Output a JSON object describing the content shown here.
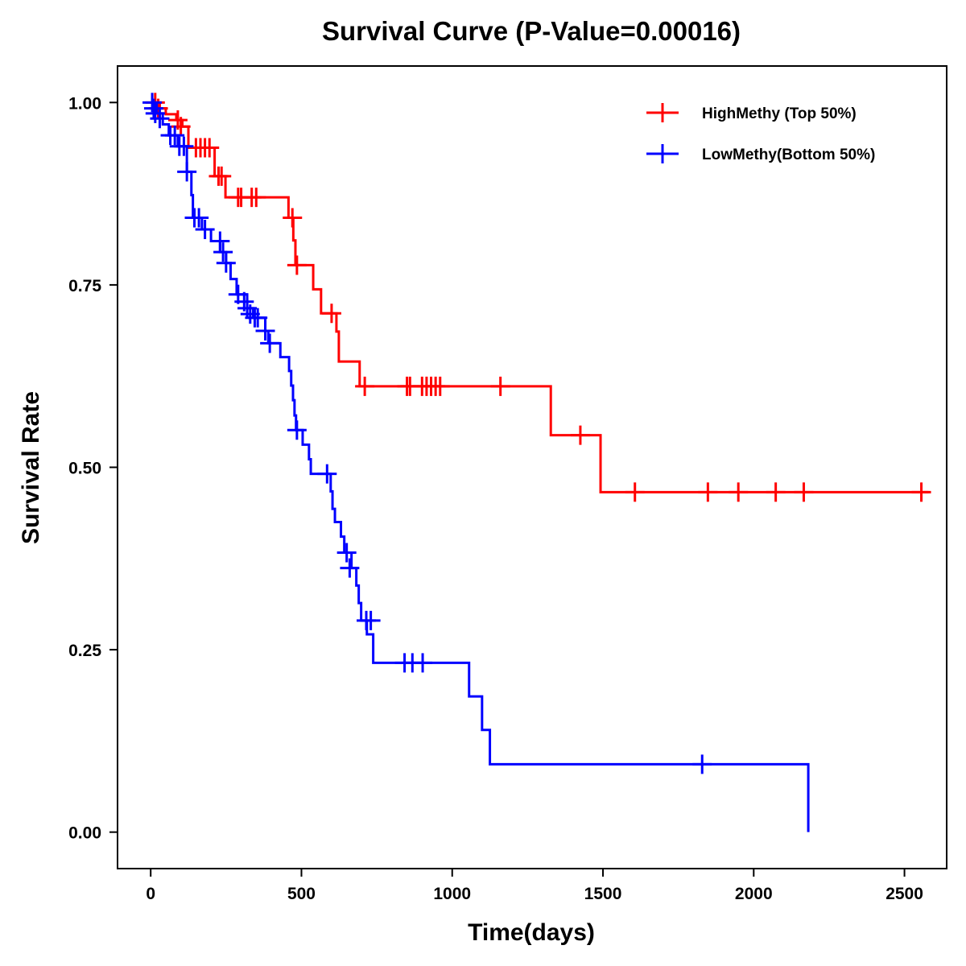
{
  "chart_data": {
    "type": "line",
    "subtype": "kaplan-meier step",
    "title": "Survival Curve (P-Value=0.00016)",
    "xlabel": "Time(days)",
    "ylabel": "Survival Rate",
    "xlim": [
      -110,
      2640
    ],
    "ylim": [
      -0.05,
      1.05
    ],
    "xticks": [
      0,
      500,
      1000,
      1500,
      2000,
      2500
    ],
    "xtick_labels": [
      "0",
      "500",
      "1000",
      "1500",
      "2000",
      "2500"
    ],
    "yticks": [
      0,
      0.25,
      0.5,
      0.75,
      1.0
    ],
    "ytick_labels": [
      "0.00",
      "0.25",
      "0.50",
      "0.75",
      "1.00"
    ],
    "grid": false,
    "legend_position": "top-right",
    "series": [
      {
        "name": "HighMethy (Top 50%)",
        "color": "#ff0000",
        "steps": [
          [
            0,
            1.0
          ],
          [
            30,
            0.992
          ],
          [
            50,
            0.984
          ],
          [
            85,
            0.976
          ],
          [
            105,
            0.967
          ],
          [
            125,
            0.938
          ],
          [
            212,
            0.899
          ],
          [
            248,
            0.87
          ],
          [
            457,
            0.842
          ],
          [
            473,
            0.811
          ],
          [
            480,
            0.777
          ],
          [
            539,
            0.744
          ],
          [
            565,
            0.711
          ],
          [
            616,
            0.686
          ],
          [
            624,
            0.645
          ],
          [
            693,
            0.611
          ],
          [
            1327,
            0.544
          ],
          [
            1492,
            0.466
          ],
          [
            2580,
            0.466
          ]
        ],
        "censored": [
          [
            15,
            1.0
          ],
          [
            25,
            0.992
          ],
          [
            90,
            0.976
          ],
          [
            100,
            0.967
          ],
          [
            150,
            0.938
          ],
          [
            165,
            0.938
          ],
          [
            180,
            0.938
          ],
          [
            195,
            0.938
          ],
          [
            225,
            0.899
          ],
          [
            235,
            0.899
          ],
          [
            290,
            0.87
          ],
          [
            300,
            0.87
          ],
          [
            335,
            0.87
          ],
          [
            350,
            0.87
          ],
          [
            470,
            0.842
          ],
          [
            485,
            0.777
          ],
          [
            600,
            0.711
          ],
          [
            710,
            0.611
          ],
          [
            850,
            0.611
          ],
          [
            860,
            0.611
          ],
          [
            900,
            0.611
          ],
          [
            915,
            0.611
          ],
          [
            930,
            0.611
          ],
          [
            945,
            0.611
          ],
          [
            960,
            0.611
          ],
          [
            1160,
            0.611
          ],
          [
            1425,
            0.544
          ],
          [
            1606,
            0.466
          ],
          [
            1848,
            0.466
          ],
          [
            1949,
            0.466
          ],
          [
            2073,
            0.466
          ],
          [
            2166,
            0.466
          ],
          [
            2556,
            0.466
          ]
        ]
      },
      {
        "name": "LowMethy(Bottom 50%)",
        "color": "#0000ff",
        "steps": [
          [
            0,
            1.0
          ],
          [
            20,
            0.985
          ],
          [
            40,
            0.97
          ],
          [
            60,
            0.955
          ],
          [
            90,
            0.94
          ],
          [
            120,
            0.905
          ],
          [
            135,
            0.873
          ],
          [
            140,
            0.842
          ],
          [
            170,
            0.826
          ],
          [
            200,
            0.81
          ],
          [
            230,
            0.795
          ],
          [
            250,
            0.78
          ],
          [
            265,
            0.758
          ],
          [
            285,
            0.737
          ],
          [
            320,
            0.718
          ],
          [
            340,
            0.705
          ],
          [
            380,
            0.687
          ],
          [
            390,
            0.67
          ],
          [
            430,
            0.651
          ],
          [
            459,
            0.632
          ],
          [
            466,
            0.612
          ],
          [
            472,
            0.592
          ],
          [
            477,
            0.571
          ],
          [
            482,
            0.551
          ],
          [
            504,
            0.531
          ],
          [
            525,
            0.511
          ],
          [
            531,
            0.491
          ],
          [
            597,
            0.467
          ],
          [
            603,
            0.443
          ],
          [
            611,
            0.425
          ],
          [
            631,
            0.405
          ],
          [
            642,
            0.383
          ],
          [
            666,
            0.362
          ],
          [
            682,
            0.338
          ],
          [
            690,
            0.314
          ],
          [
            698,
            0.29
          ],
          [
            717,
            0.271
          ],
          [
            738,
            0.232
          ],
          [
            1056,
            0.186
          ],
          [
            1099,
            0.14
          ],
          [
            1125,
            0.093
          ],
          [
            2181,
            0.0
          ]
        ],
        "censored": [
          [
            5,
            1.0
          ],
          [
            10,
            0.992
          ],
          [
            15,
            0.985
          ],
          [
            30,
            0.978
          ],
          [
            65,
            0.955
          ],
          [
            80,
            0.955
          ],
          [
            95,
            0.94
          ],
          [
            110,
            0.94
          ],
          [
            120,
            0.905
          ],
          [
            145,
            0.842
          ],
          [
            160,
            0.842
          ],
          [
            180,
            0.826
          ],
          [
            230,
            0.81
          ],
          [
            240,
            0.795
          ],
          [
            250,
            0.78
          ],
          [
            290,
            0.737
          ],
          [
            310,
            0.727
          ],
          [
            320,
            0.718
          ],
          [
            330,
            0.71
          ],
          [
            345,
            0.705
          ],
          [
            355,
            0.705
          ],
          [
            380,
            0.687
          ],
          [
            395,
            0.67
          ],
          [
            485,
            0.551
          ],
          [
            585,
            0.491
          ],
          [
            650,
            0.383
          ],
          [
            660,
            0.362
          ],
          [
            715,
            0.29
          ],
          [
            730,
            0.29
          ],
          [
            842,
            0.232
          ],
          [
            868,
            0.232
          ],
          [
            902,
            0.232
          ],
          [
            1829,
            0.093
          ]
        ]
      }
    ]
  }
}
